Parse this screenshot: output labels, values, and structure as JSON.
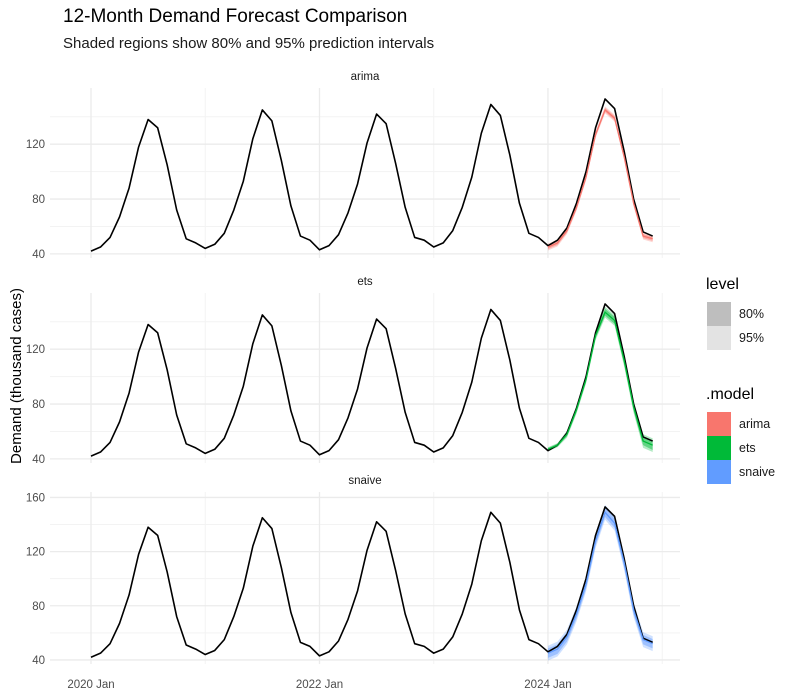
{
  "chart_data": {
    "type": "line",
    "title": "12-Month Demand Forecast Comparison",
    "subtitle": "Shaded regions show 80% and 95% prediction intervals",
    "ylabel": "Demand (thousand cases)",
    "xlabel": "",
    "x_ticks": [
      "2020 Jan",
      "2022 Jan",
      "2024 Jan"
    ],
    "grid": true,
    "legend_placement": "right",
    "facets": [
      {
        "label": "arima",
        "y_ticks": [
          40,
          80,
          120
        ],
        "ylim": [
          37,
          161
        ]
      },
      {
        "label": "ets",
        "y_ticks": [
          40,
          80,
          120
        ],
        "ylim": [
          37,
          161
        ]
      },
      {
        "label": "snaive",
        "y_ticks": [
          40,
          80,
          120,
          160
        ],
        "ylim": [
          37,
          164
        ]
      }
    ],
    "actual": {
      "start": "2020 Jan",
      "frequency": "monthly",
      "values": [
        42,
        45,
        52,
        67,
        88,
        118,
        138,
        132,
        105,
        72,
        51,
        48,
        44,
        47,
        55,
        72,
        93,
        124,
        145,
        137,
        108,
        75,
        53,
        50,
        43,
        46,
        54,
        70,
        91,
        121,
        142,
        135,
        106,
        74,
        52,
        50,
        45,
        48,
        57,
        74,
        96,
        128,
        149,
        141,
        112,
        77,
        55,
        52,
        46,
        50,
        59,
        77,
        100,
        132,
        153,
        146,
        115,
        80,
        56,
        53
      ]
    },
    "forecast_start": "2024 Jan",
    "forecasts": [
      {
        "model": "arima",
        "color": "#F8766D",
        "mean": [
          45,
          48,
          57,
          74,
          96,
          127,
          145,
          139,
          111,
          77,
          53,
          51
        ],
        "lo80": [
          43.5,
          46.5,
          55.5,
          72.5,
          94.5,
          125.5,
          143.5,
          137.5,
          109.5,
          75.5,
          51.5,
          49.5
        ],
        "hi80": [
          46.5,
          49.5,
          58.5,
          75.5,
          97.5,
          128.5,
          146.5,
          140.5,
          112.5,
          78.5,
          54.5,
          52.5
        ],
        "lo95": [
          42.5,
          45.5,
          54.5,
          71.5,
          93.5,
          124.5,
          142.5,
          136.5,
          108.5,
          74.5,
          50.5,
          48.5
        ],
        "hi95": [
          47.5,
          50.5,
          59.5,
          76.5,
          98.5,
          129.5,
          147.5,
          141.5,
          113.5,
          79.5,
          55.5,
          53.5
        ]
      },
      {
        "model": "ets",
        "color": "#00BA38",
        "mean": [
          47,
          50,
          58,
          76,
          98,
          130,
          147,
          141,
          112,
          78,
          53,
          50
        ],
        "lo80": [
          46,
          49,
          56.5,
          74,
          96,
          128,
          144.5,
          138.5,
          109,
          75,
          50,
          46.5
        ],
        "hi80": [
          48,
          51,
          59.5,
          78,
          100,
          132,
          149.5,
          143.5,
          115,
          81,
          56,
          53.5
        ],
        "lo95": [
          45.5,
          48.5,
          55.5,
          73,
          95,
          126.5,
          143,
          137,
          107.5,
          73.5,
          48,
          45
        ],
        "hi95": [
          48.5,
          51.5,
          60.5,
          79,
          101,
          133.5,
          151,
          145,
          116.5,
          82.5,
          58,
          55
        ]
      },
      {
        "model": "snaive",
        "color": "#619CFF",
        "mean": [
          45,
          48,
          57,
          74,
          96,
          128,
          149,
          141,
          112,
          77,
          55,
          52
        ],
        "lo80": [
          41.5,
          44.5,
          53.5,
          70.5,
          92.5,
          124.5,
          145.5,
          137.5,
          108.5,
          73.5,
          51.5,
          48.5
        ],
        "hi80": [
          48.5,
          51.5,
          60.5,
          77.5,
          99.5,
          131.5,
          152.5,
          144.5,
          115.5,
          80.5,
          58.5,
          55.5
        ],
        "lo95": [
          39.5,
          42.5,
          51.5,
          68.5,
          90.5,
          122.5,
          143.5,
          135.5,
          106.5,
          71.5,
          49.5,
          46.5
        ],
        "hi95": [
          50.5,
          53.5,
          62.5,
          79.5,
          101.5,
          133.5,
          154.5,
          146.5,
          117.5,
          82.5,
          60.5,
          57.5
        ]
      }
    ],
    "legend": {
      "level": {
        "title": "level",
        "items": [
          {
            "label": "80%",
            "color": "#BEBEBE"
          },
          {
            "label": "95%",
            "color": "#E3E3E3"
          }
        ]
      },
      "model": {
        "title": ".model",
        "items": [
          {
            "label": "arima",
            "color": "#F8766D"
          },
          {
            "label": "ets",
            "color": "#00BA38"
          },
          {
            "label": "snaive",
            "color": "#619CFF"
          }
        ]
      }
    }
  }
}
